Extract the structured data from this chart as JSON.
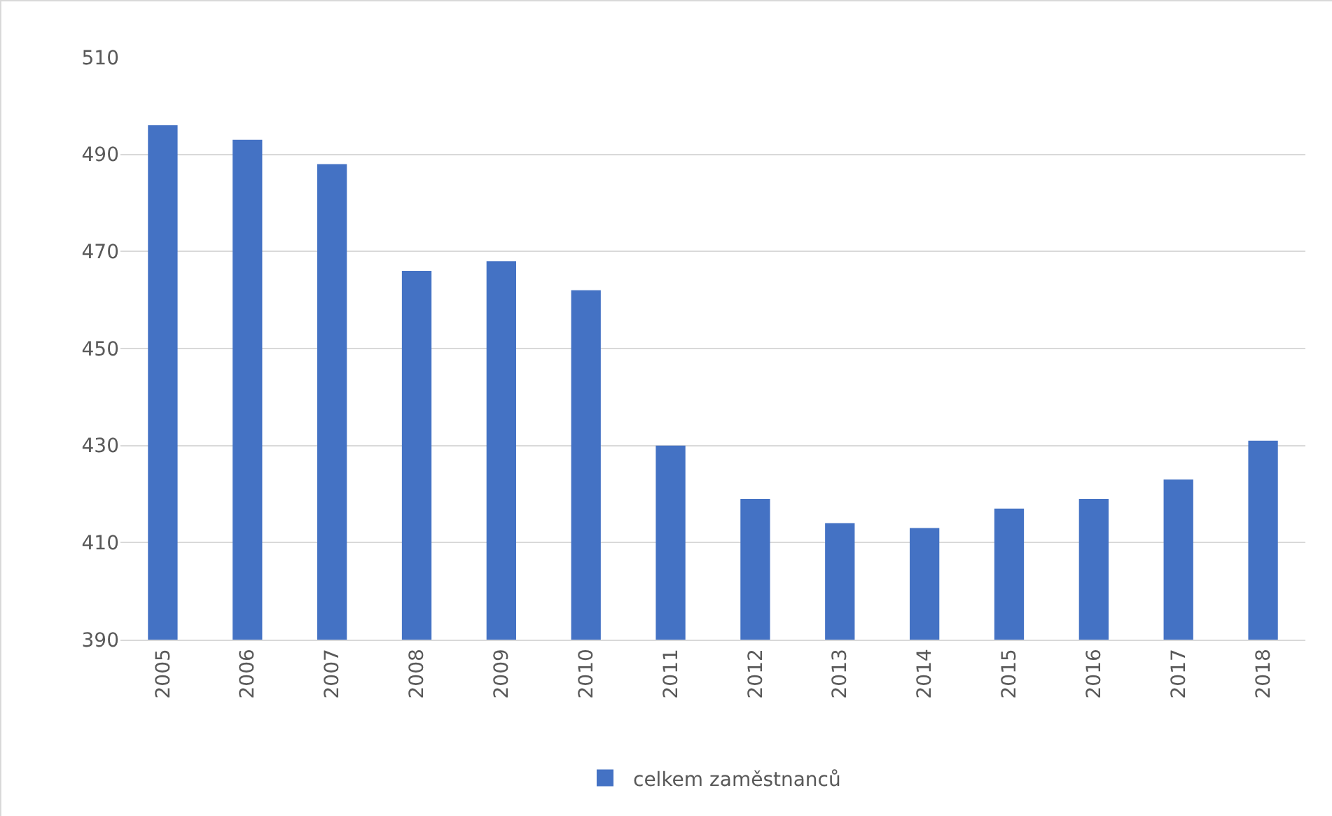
{
  "chart_data": {
    "type": "bar",
    "categories": [
      "2005",
      "2006",
      "2007",
      "2008",
      "2009",
      "2010",
      "2011",
      "2012",
      "2013",
      "2014",
      "2015",
      "2016",
      "2017",
      "2018"
    ],
    "series": [
      {
        "name": "celkem zaměstnanců",
        "color": "#4472c4",
        "values": [
          496,
          493,
          488,
          466,
          468,
          462,
          430,
          419,
          414,
          413,
          417,
          419,
          423,
          431
        ]
      }
    ],
    "ylim": [
      390,
      510
    ],
    "yticks": [
      390,
      410,
      430,
      450,
      470,
      490,
      510
    ],
    "grid": "y",
    "legend": "bottom"
  }
}
